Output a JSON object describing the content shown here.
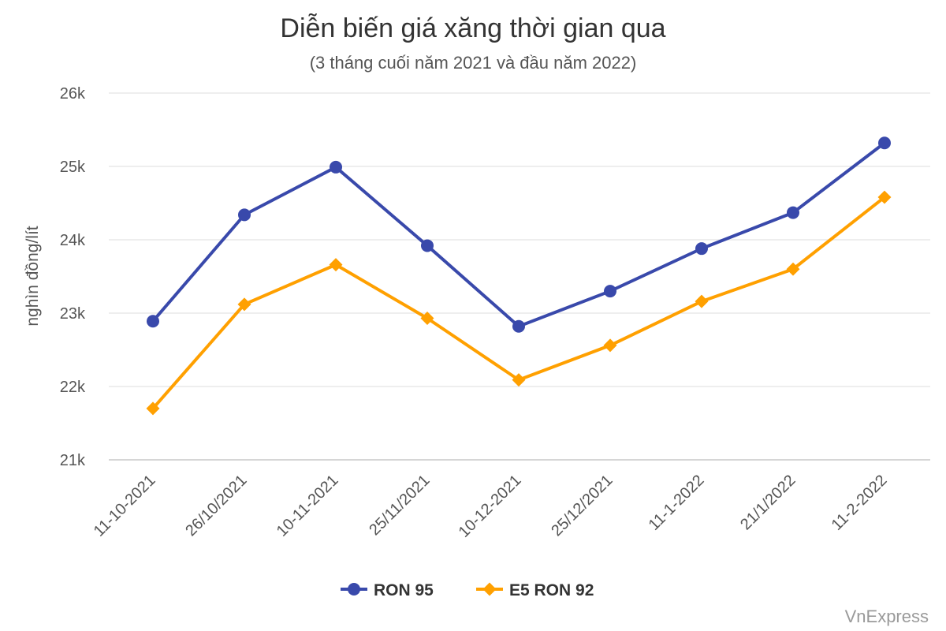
{
  "chart_data": {
    "type": "line",
    "title": "Diễn biến giá xăng thời gian qua",
    "subtitle": "(3 tháng cuối năm 2021 và đầu năm 2022)",
    "xlabel": "",
    "ylabel": "nghìn đồng/lít",
    "categories": [
      "11-10-2021",
      "26/10/2021",
      "10-11-2021",
      "25/11/2021",
      "10-12-2021",
      "25/12/2021",
      "11-1-2022",
      "21/1/2022",
      "11-2-2022"
    ],
    "ylim": [
      21000,
      26000
    ],
    "yticks": [
      21000,
      22000,
      23000,
      24000,
      25000,
      26000
    ],
    "ytick_labels": [
      "21k",
      "22k",
      "23k",
      "24k",
      "25k",
      "26k"
    ],
    "grid": true,
    "legend_position": "bottom",
    "series": [
      {
        "name": "RON 95",
        "color": "#3949ab",
        "marker": "circle",
        "values": [
          22890,
          24340,
          24990,
          23920,
          22820,
          23300,
          23880,
          24370,
          25320
        ]
      },
      {
        "name": "E5 RON 92",
        "color": "#ffa000",
        "marker": "diamond",
        "values": [
          21700,
          23120,
          23660,
          22930,
          22090,
          22560,
          23160,
          23600,
          24580
        ]
      }
    ]
  },
  "credit": "VnExpress"
}
